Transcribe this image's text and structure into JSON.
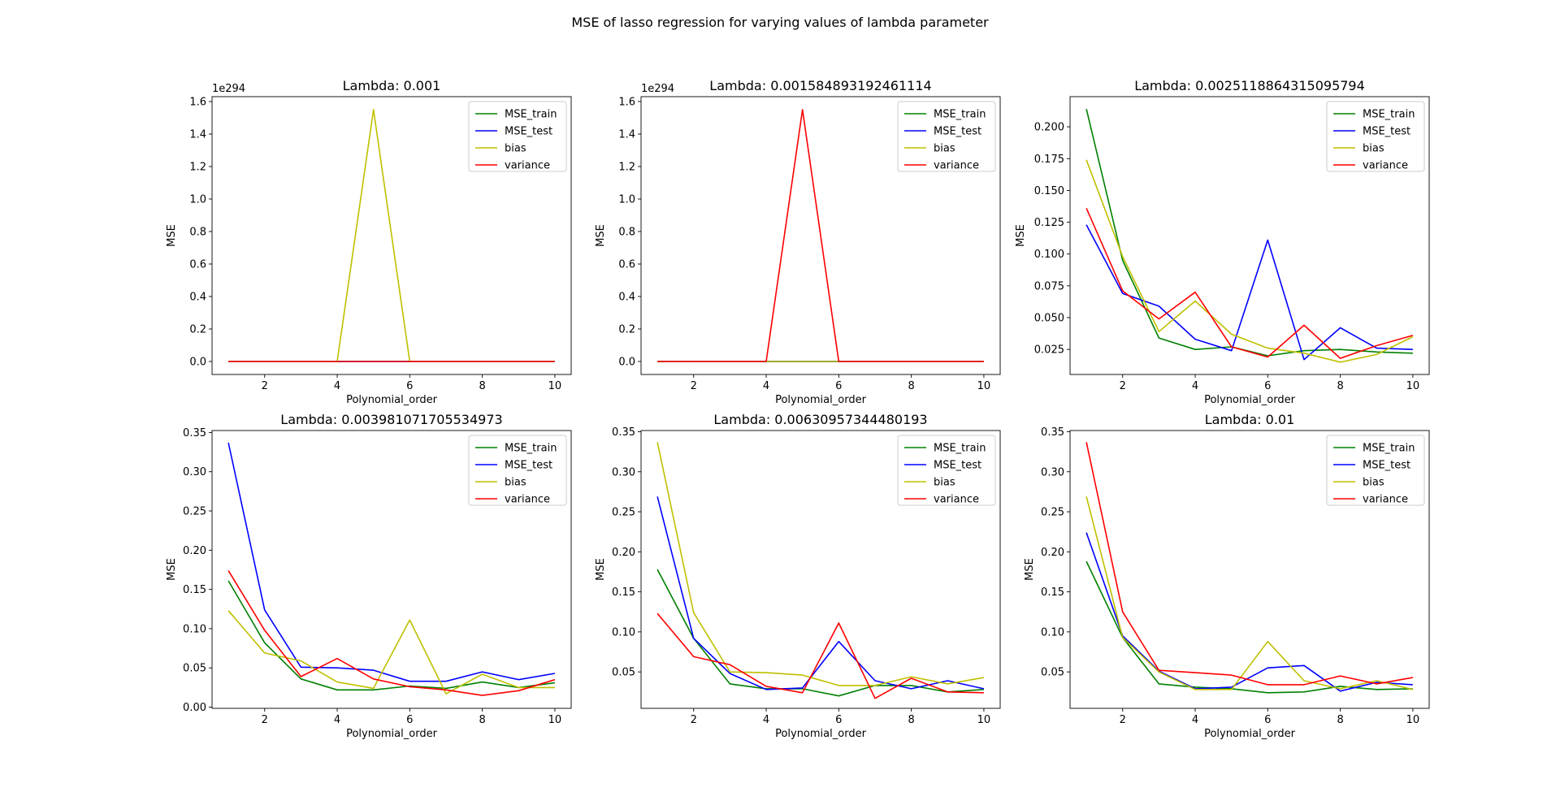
{
  "figure": {
    "title": "MSE of lasso regression for varying values of lambda parameter"
  },
  "series_meta": [
    {
      "name": "MSE_train",
      "color": "#008000"
    },
    {
      "name": "MSE_test",
      "color": "#0000ff"
    },
    {
      "name": "bias",
      "color": "#bfbf00"
    },
    {
      "name": "variance",
      "color": "#ff0000"
    }
  ],
  "chart_data": [
    {
      "type": "line",
      "title": "Lambda: 0.001",
      "xlabel": "Polynomial_order",
      "ylabel": "MSE",
      "offset_text": "1e294",
      "x": [
        1,
        2,
        3,
        4,
        5,
        6,
        7,
        8,
        9,
        10
      ],
      "xticks": [
        "2",
        "4",
        "6",
        "8",
        "10"
      ],
      "xlim": [
        0.55,
        10.45
      ],
      "yticks": [
        "0.0",
        "0.2",
        "0.4",
        "0.6",
        "0.8",
        "1.0",
        "1.2",
        "1.4",
        "1.6"
      ],
      "ylim": [
        -0.08,
        1.63
      ],
      "legend_position": "upper right",
      "series": [
        {
          "name": "MSE_train",
          "values": [
            0,
            0,
            0,
            0,
            0,
            0,
            0,
            0,
            0,
            0
          ]
        },
        {
          "name": "MSE_test",
          "values": [
            0,
            0,
            0,
            0,
            0,
            0,
            0,
            0,
            0,
            0
          ]
        },
        {
          "name": "bias",
          "values": [
            0,
            0,
            0,
            0,
            1.55,
            0,
            0,
            0,
            0,
            0
          ]
        },
        {
          "name": "variance",
          "values": [
            0,
            0,
            0,
            0,
            0,
            0,
            0,
            0,
            0,
            0
          ]
        }
      ]
    },
    {
      "type": "line",
      "title": "Lambda: 0.001584893192461114",
      "xlabel": "Polynomial_order",
      "ylabel": "MSE",
      "offset_text": "1e294",
      "x": [
        1,
        2,
        3,
        4,
        5,
        6,
        7,
        8,
        9,
        10
      ],
      "xticks": [
        "2",
        "4",
        "6",
        "8",
        "10"
      ],
      "xlim": [
        0.55,
        10.45
      ],
      "yticks": [
        "0.0",
        "0.2",
        "0.4",
        "0.6",
        "0.8",
        "1.0",
        "1.2",
        "1.4",
        "1.6"
      ],
      "ylim": [
        -0.08,
        1.63
      ],
      "legend_position": "upper right",
      "series": [
        {
          "name": "MSE_train",
          "values": [
            0,
            0,
            0,
            0,
            0,
            0,
            0,
            0,
            0,
            0
          ]
        },
        {
          "name": "MSE_test",
          "values": [
            0,
            0,
            0,
            0,
            0,
            0,
            0,
            0,
            0,
            0
          ]
        },
        {
          "name": "bias",
          "values": [
            0,
            0,
            0,
            0,
            0,
            0,
            0,
            0,
            0,
            0
          ]
        },
        {
          "name": "variance",
          "values": [
            0,
            0,
            0,
            0,
            1.55,
            0,
            0,
            0,
            0,
            0
          ]
        }
      ]
    },
    {
      "type": "line",
      "title": "Lambda: 0.0025118864315095794",
      "xlabel": "Polynomial_order",
      "ylabel": "MSE",
      "offset_text": "",
      "x": [
        1,
        2,
        3,
        4,
        5,
        6,
        7,
        8,
        9,
        10
      ],
      "xticks": [
        "2",
        "4",
        "6",
        "8",
        "10"
      ],
      "xlim": [
        0.55,
        10.45
      ],
      "yticks": [
        "0.025",
        "0.050",
        "0.075",
        "0.100",
        "0.125",
        "0.150",
        "0.175",
        "0.200"
      ],
      "ylim": [
        0.0053,
        0.2237
      ],
      "legend_position": "upper right",
      "series": [
        {
          "name": "MSE_train",
          "values": [
            0.214,
            0.095,
            0.034,
            0.025,
            0.027,
            0.02,
            0.024,
            0.025,
            0.023,
            0.022
          ]
        },
        {
          "name": "MSE_test",
          "values": [
            0.123,
            0.069,
            0.059,
            0.033,
            0.024,
            0.111,
            0.017,
            0.042,
            0.026,
            0.025
          ]
        },
        {
          "name": "bias",
          "values": [
            0.174,
            0.098,
            0.039,
            0.063,
            0.037,
            0.026,
            0.022,
            0.015,
            0.021,
            0.035
          ]
        },
        {
          "name": "variance",
          "values": [
            0.136,
            0.071,
            0.049,
            0.07,
            0.027,
            0.019,
            0.044,
            0.018,
            0.028,
            0.036
          ]
        }
      ]
    },
    {
      "type": "line",
      "title": "Lambda: 0.003981071705534973",
      "xlabel": "Polynomial_order",
      "ylabel": "MSE",
      "offset_text": "",
      "x": [
        1,
        2,
        3,
        4,
        5,
        6,
        7,
        8,
        9,
        10
      ],
      "xticks": [
        "2",
        "4",
        "6",
        "8",
        "10"
      ],
      "xlim": [
        0.55,
        10.45
      ],
      "yticks": [
        "0.00",
        "0.05",
        "0.10",
        "0.15",
        "0.20",
        "0.25",
        "0.30",
        "0.35"
      ],
      "ylim": [
        -0.0015,
        0.3525
      ],
      "legend_position": "upper right",
      "series": [
        {
          "name": "MSE_train",
          "values": [
            0.161,
            0.082,
            0.036,
            0.022,
            0.022,
            0.027,
            0.024,
            0.032,
            0.025,
            0.031
          ]
        },
        {
          "name": "MSE_test",
          "values": [
            0.337,
            0.124,
            0.051,
            0.05,
            0.047,
            0.033,
            0.033,
            0.045,
            0.035,
            0.043
          ]
        },
        {
          "name": "bias",
          "values": [
            0.123,
            0.069,
            0.059,
            0.032,
            0.024,
            0.111,
            0.017,
            0.042,
            0.025,
            0.025
          ]
        },
        {
          "name": "variance",
          "values": [
            0.174,
            0.098,
            0.039,
            0.062,
            0.036,
            0.026,
            0.022,
            0.015,
            0.021,
            0.035
          ]
        }
      ]
    },
    {
      "type": "line",
      "title": "Lambda: 0.00630957344480193",
      "xlabel": "Polynomial_order",
      "ylabel": "MSE",
      "offset_text": "",
      "x": [
        1,
        2,
        3,
        4,
        5,
        6,
        7,
        8,
        9,
        10
      ],
      "xticks": [
        "2",
        "4",
        "6",
        "8",
        "10"
      ],
      "xlim": [
        0.55,
        10.45
      ],
      "yticks": [
        "0.05",
        "0.10",
        "0.15",
        "0.20",
        "0.25",
        "0.30",
        "0.35"
      ],
      "ylim": [
        0.0045,
        0.3515
      ],
      "legend_position": "upper right",
      "series": [
        {
          "name": "MSE_train",
          "values": [
            0.178,
            0.092,
            0.035,
            0.029,
            0.029,
            0.02,
            0.033,
            0.033,
            0.025,
            0.028
          ]
        },
        {
          "name": "MSE_test",
          "values": [
            0.269,
            0.092,
            0.048,
            0.028,
            0.03,
            0.088,
            0.039,
            0.029,
            0.039,
            0.029
          ]
        },
        {
          "name": "bias",
          "values": [
            0.337,
            0.124,
            0.05,
            0.049,
            0.046,
            0.033,
            0.033,
            0.044,
            0.035,
            0.043
          ]
        },
        {
          "name": "variance",
          "values": [
            0.123,
            0.069,
            0.059,
            0.032,
            0.024,
            0.111,
            0.017,
            0.042,
            0.025,
            0.024
          ]
        }
      ]
    },
    {
      "type": "line",
      "title": "Lambda: 0.01",
      "xlabel": "Polynomial_order",
      "ylabel": "MSE",
      "offset_text": "",
      "x": [
        1,
        2,
        3,
        4,
        5,
        6,
        7,
        8,
        9,
        10
      ],
      "xticks": [
        "2",
        "4",
        "6",
        "8",
        "10"
      ],
      "xlim": [
        0.55,
        10.45
      ],
      "yticks": [
        "0.05",
        "0.10",
        "0.15",
        "0.20",
        "0.25",
        "0.30",
        "0.35"
      ],
      "ylim": [
        0.0045,
        0.3515
      ],
      "legend_position": "upper right",
      "series": [
        {
          "name": "MSE_train",
          "values": [
            0.188,
            0.093,
            0.035,
            0.031,
            0.029,
            0.024,
            0.025,
            0.032,
            0.028,
            0.029
          ]
        },
        {
          "name": "MSE_test",
          "values": [
            0.224,
            0.095,
            0.051,
            0.029,
            0.031,
            0.055,
            0.058,
            0.026,
            0.037,
            0.034
          ]
        },
        {
          "name": "bias",
          "values": [
            0.269,
            0.093,
            0.05,
            0.028,
            0.028,
            0.088,
            0.039,
            0.029,
            0.039,
            0.028
          ]
        },
        {
          "name": "variance",
          "values": [
            0.337,
            0.125,
            0.052,
            0.049,
            0.046,
            0.034,
            0.034,
            0.045,
            0.035,
            0.043
          ]
        }
      ]
    }
  ]
}
